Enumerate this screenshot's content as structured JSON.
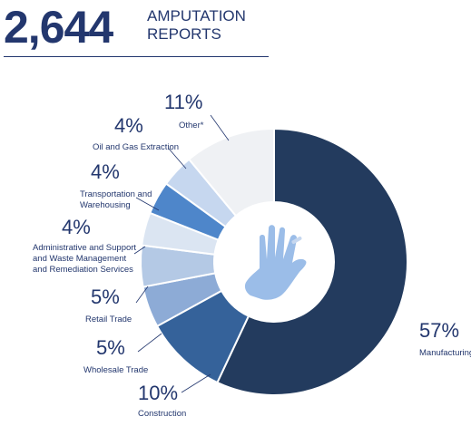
{
  "header": {
    "total": "2,644",
    "label_line1": "AMPUTATION",
    "label_line2": "REPORTS"
  },
  "chart_data": {
    "type": "pie",
    "title": "2,644 AMPUTATION REPORTS",
    "categories": [
      "Manufacturing",
      "Construction",
      "Wholesale Trade",
      "Retail Trade",
      "Administrative and Support and Waste Management and Remediation Services",
      "Transportation and Warehousing",
      "Oil and Gas Extraction",
      "Other*"
    ],
    "values": [
      57,
      10,
      5,
      5,
      4,
      4,
      4,
      11
    ],
    "pct_labels": [
      "57%",
      "10%",
      "5%",
      "5%",
      "4%",
      "4%",
      "4%",
      "11%"
    ],
    "label_lines": [
      [
        "Manufacturing"
      ],
      [
        "Construction"
      ],
      [
        "Wholesale Trade"
      ],
      [
        "Retail Trade"
      ],
      [
        "Administrative and Support",
        "and Waste Management",
        "and Remediation Services"
      ],
      [
        "Transportation and",
        "Warehousing"
      ],
      [
        "Oil and Gas Extraction"
      ],
      [
        "Other*"
      ]
    ],
    "colors": [
      "#233b5e",
      "#35629a",
      "#8dabd6",
      "#b4c9e5",
      "#dbe5f2",
      "#4e86ca",
      "#c6d7ef",
      "#eff1f4"
    ],
    "icon": "hand-icon"
  }
}
